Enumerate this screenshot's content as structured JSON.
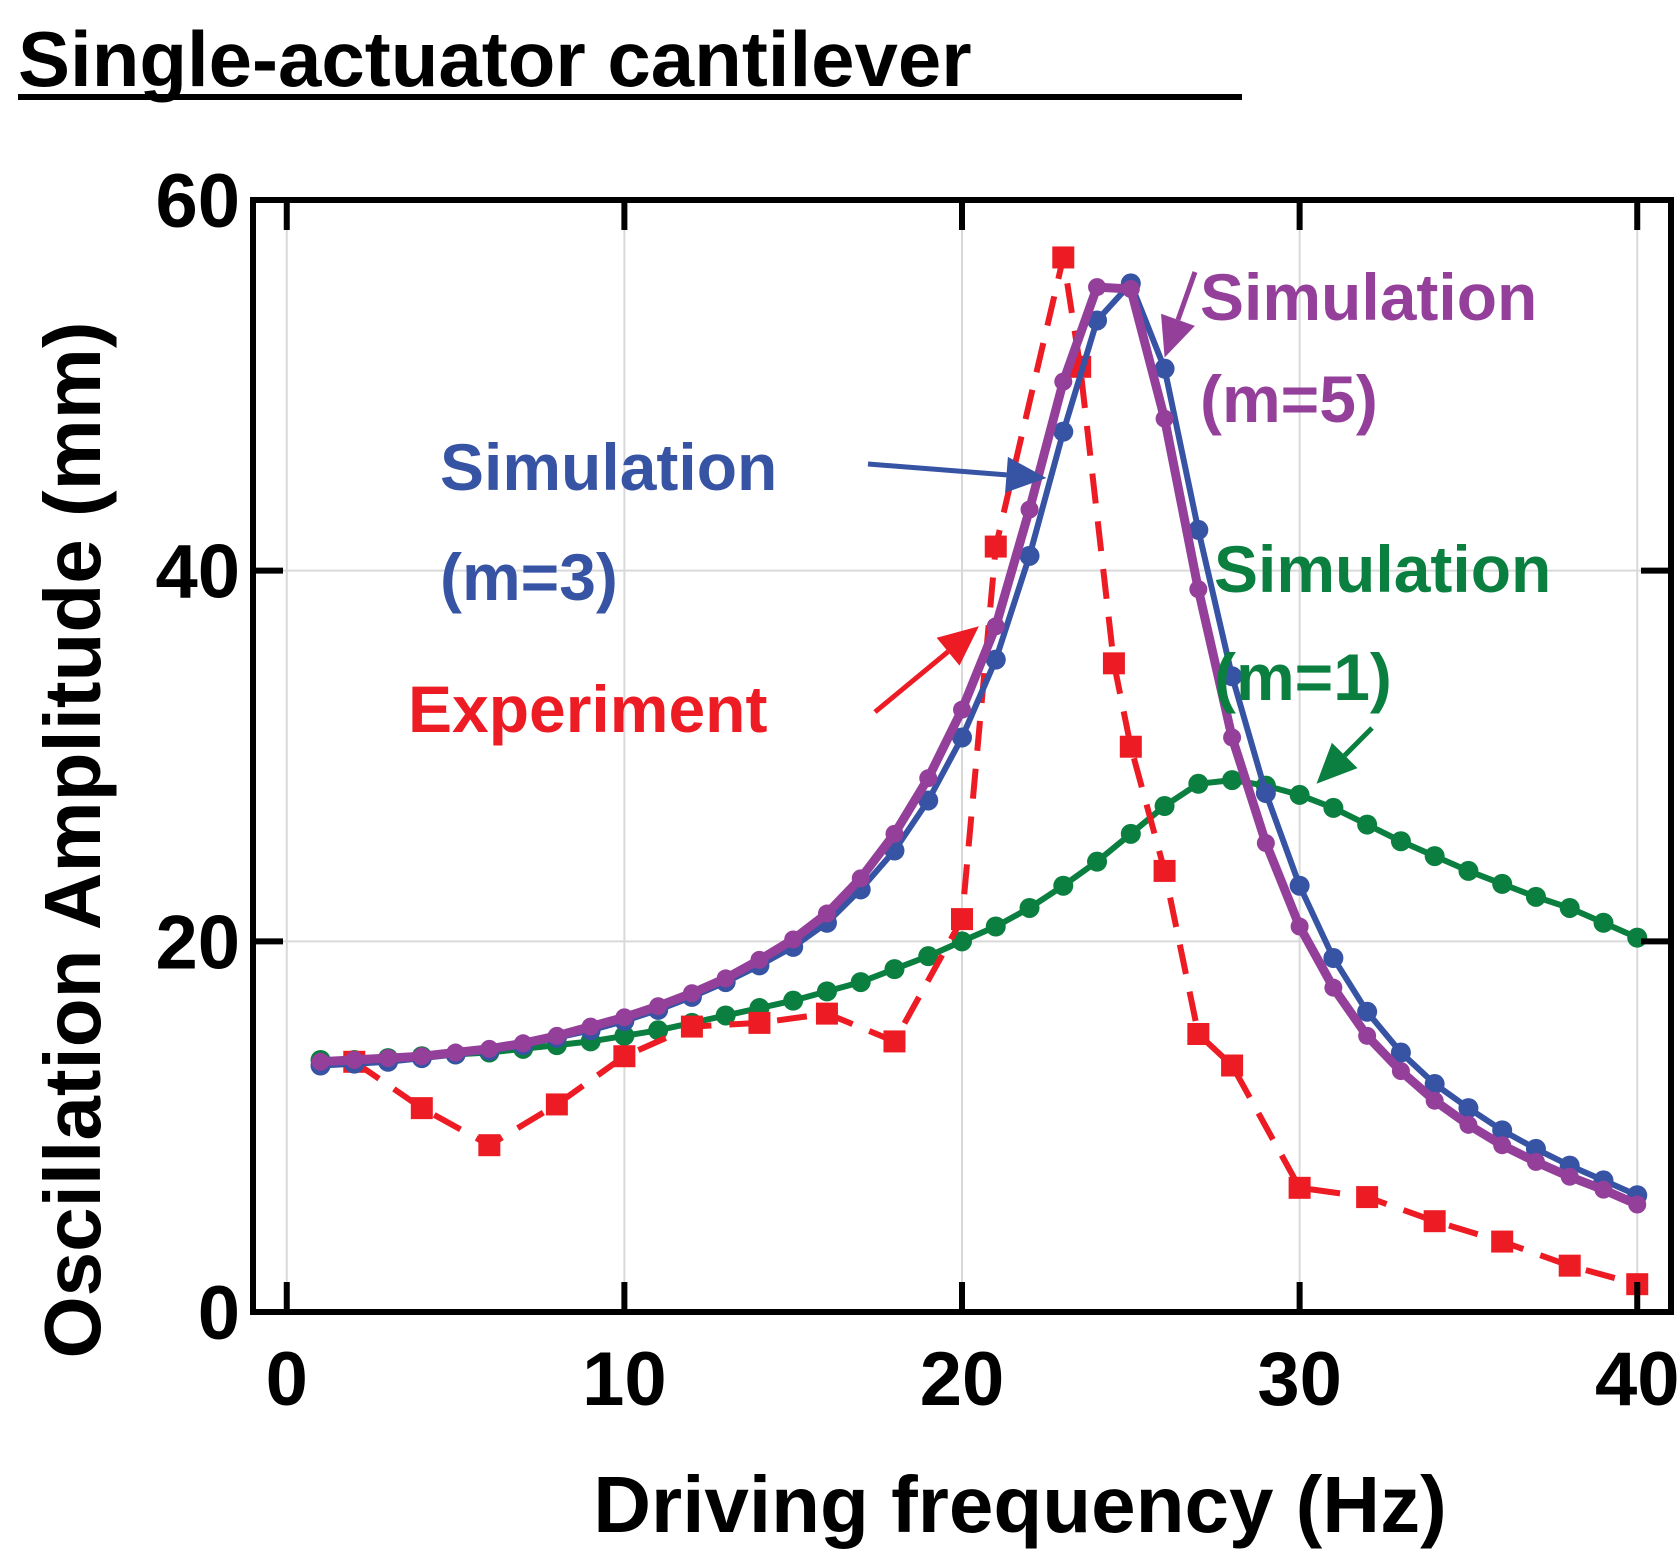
{
  "chart_data": {
    "type": "line",
    "title": "Single-actuator cantilever",
    "xlabel": "Driving frequency (Hz)",
    "ylabel": "Oscillation Amplitude (mm)",
    "xlim": [
      -1,
      41
    ],
    "ylim": [
      0,
      60
    ],
    "x_ticks": [
      0,
      10,
      20,
      30,
      40
    ],
    "y_ticks": [
      0,
      20,
      40,
      60
    ],
    "grid": true,
    "colors": {
      "experiment": "#ed1c24",
      "sim_m1": "#0a7f3f",
      "sim_m3": "#3653a4",
      "sim_m5": "#94409a"
    },
    "series": [
      {
        "key": "experiment",
        "color": "#ed1c24",
        "dashed": true,
        "marker": "square",
        "x": [
          2,
          4,
          6,
          8,
          10,
          12,
          14,
          16,
          18,
          20,
          21,
          23,
          23.5,
          24.5,
          25,
          26,
          27,
          28,
          30,
          32,
          34,
          36,
          38,
          40
        ],
        "y": [
          13.5,
          11,
          9,
          11.2,
          13.8,
          15.4,
          15.6,
          16.1,
          14.6,
          21.2,
          41.3,
          56.9,
          51,
          35,
          30.5,
          23.8,
          15,
          13.3,
          6.7,
          6.2,
          4.9,
          3.8,
          2.5,
          1.5
        ]
      },
      {
        "key": "sim_m1",
        "color": "#0a7f3f",
        "dashed": false,
        "marker": "circle",
        "x": [
          1,
          2,
          3,
          4,
          5,
          6,
          7,
          8,
          9,
          10,
          11,
          12,
          13,
          14,
          15,
          16,
          17,
          18,
          19,
          20,
          21,
          22,
          23,
          24,
          25,
          26,
          27,
          28,
          29,
          30,
          31,
          32,
          33,
          34,
          35,
          36,
          37,
          38,
          39,
          40
        ],
        "y": [
          13.6,
          13.6,
          13.7,
          13.8,
          13.9,
          14,
          14.2,
          14.4,
          14.6,
          14.9,
          15.2,
          15.6,
          16,
          16.4,
          16.8,
          17.3,
          17.8,
          18.5,
          19.2,
          20,
          20.8,
          21.8,
          23,
          24.3,
          25.8,
          27.3,
          28.5,
          28.7,
          28.4,
          27.9,
          27.2,
          26.3,
          25.4,
          24.6,
          23.8,
          23.1,
          22.4,
          21.8,
          21,
          20.2
        ]
      },
      {
        "key": "sim_m3",
        "color": "#3653a4",
        "dashed": false,
        "marker": "circle",
        "x": [
          1,
          2,
          3,
          4,
          5,
          6,
          7,
          8,
          9,
          10,
          11,
          12,
          13,
          14,
          15,
          16,
          17,
          18,
          19,
          20,
          21,
          22,
          23,
          24,
          25,
          26,
          27,
          28,
          29,
          30,
          31,
          32,
          33,
          34,
          35,
          36,
          37,
          38,
          39,
          40
        ],
        "y": [
          13.3,
          13.4,
          13.5,
          13.7,
          13.9,
          14.1,
          14.4,
          14.8,
          15.2,
          15.7,
          16.3,
          17,
          17.8,
          18.7,
          19.7,
          21,
          22.8,
          24.9,
          27.6,
          31,
          35.2,
          40.8,
          47.5,
          53.5,
          55.5,
          50.9,
          42.2,
          34.3,
          28,
          23,
          19.1,
          16.2,
          14,
          12.3,
          11,
          9.8,
          8.8,
          7.9,
          7.1,
          6.3
        ]
      },
      {
        "key": "sim_m5",
        "color": "#94409a",
        "dashed": false,
        "marker": "circle",
        "x": [
          1,
          2,
          3,
          4,
          5,
          6,
          7,
          8,
          9,
          10,
          11,
          12,
          13,
          14,
          15,
          16,
          17,
          18,
          19,
          20,
          21,
          22,
          23,
          24,
          25,
          26,
          27,
          28,
          29,
          30,
          31,
          32,
          33,
          34,
          35,
          36,
          37,
          38,
          39,
          40
        ],
        "y": [
          13.5,
          13.6,
          13.7,
          13.8,
          14,
          14.2,
          14.5,
          14.9,
          15.4,
          15.9,
          16.5,
          17.2,
          18,
          19,
          20.1,
          21.5,
          23.4,
          25.8,
          28.8,
          32.5,
          37,
          43.3,
          50.2,
          55.3,
          55.2,
          48.2,
          39,
          31,
          25.3,
          20.8,
          17.5,
          14.9,
          13,
          11.4,
          10.1,
          9,
          8.1,
          7.3,
          6.6,
          5.8
        ]
      }
    ],
    "annotations": [
      {
        "key": "sim_m5",
        "color": "#94409a",
        "lines": [
          "Simulation",
          "(m=5)"
        ]
      },
      {
        "key": "sim_m3",
        "color": "#3653a4",
        "lines": [
          "Simulation",
          "(m=3)"
        ]
      },
      {
        "key": "sim_m1",
        "color": "#0a7f3f",
        "lines": [
          "Simulation",
          "(m=1)"
        ]
      },
      {
        "key": "experiment",
        "color": "#ed1c24",
        "lines": [
          "Experiment"
        ]
      }
    ]
  }
}
